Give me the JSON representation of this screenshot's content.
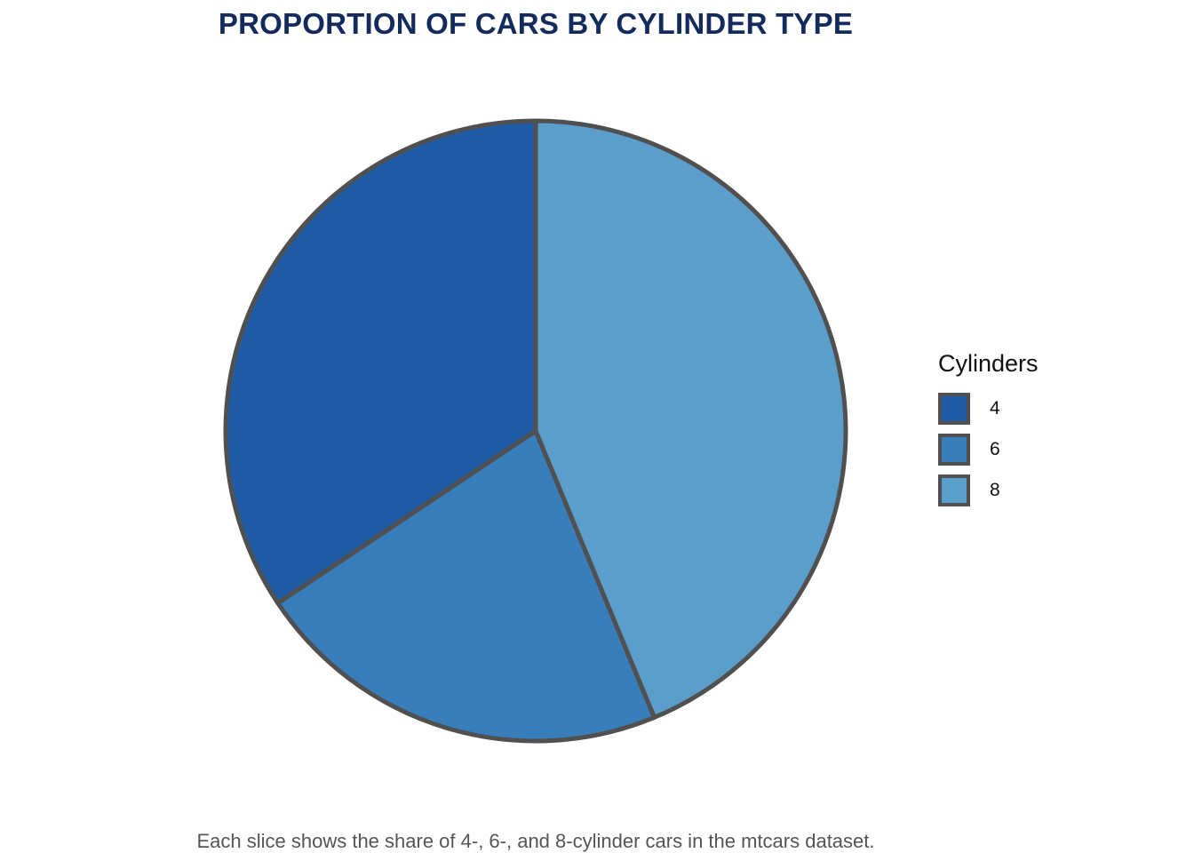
{
  "title": "PROPORTION OF CARS BY CYLINDER TYPE",
  "caption": "Each slice shows the share of 4-, 6-, and 8-cylinder cars in the mtcars dataset.",
  "chart_data": {
    "type": "pie",
    "title": "PROPORTION OF CARS BY CYLINDER TYPE",
    "categories": [
      "4",
      "6",
      "8"
    ],
    "values": [
      11,
      7,
      14
    ],
    "colors": [
      "#1f5ca5",
      "#387ebb",
      "#5b9ecb"
    ],
    "slice_border_color": "#505050",
    "legend": {
      "title": "Cylinders",
      "placement": "right"
    }
  }
}
